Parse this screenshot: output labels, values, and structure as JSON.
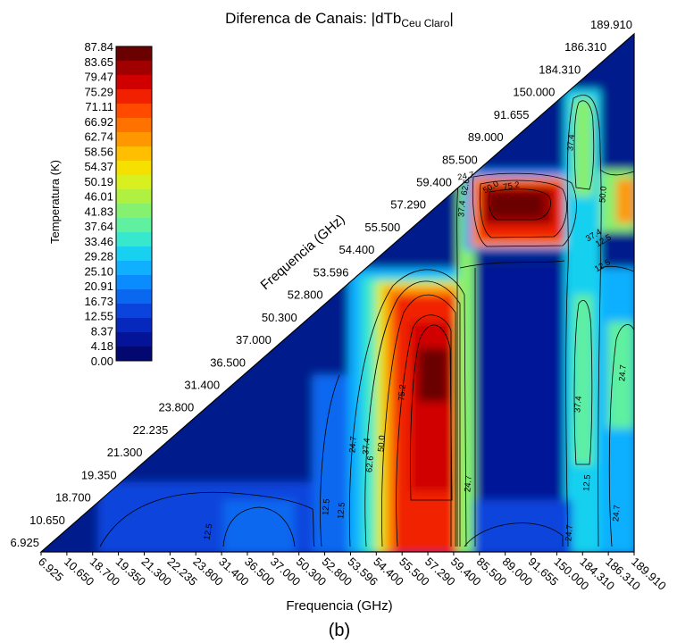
{
  "chart_data": {
    "type": "heatmap",
    "title_main": "Diferenca de Canais: |dTb",
    "title_sub": "Ceu Claro",
    "title_end": "|",
    "xlabel": "Frequencia (GHz)",
    "diag_label": "Frequencia (GHz)",
    "caption": "(b)",
    "colorbar_label": "Temperatura (K)",
    "colorbar_ticks": [
      "87.84",
      "83.65",
      "79.47",
      "75.29",
      "71.11",
      "66.92",
      "62.74",
      "58.56",
      "54.37",
      "50.19",
      "46.01",
      "41.83",
      "37.64",
      "33.46",
      "29.28",
      "25.10",
      "20.91",
      "16.73",
      "12.55",
      "8.37",
      "4.18",
      "0.00"
    ],
    "colorbar_colors": [
      "#6a0000",
      "#a00000",
      "#d00000",
      "#f02000",
      "#ff4a00",
      "#ff7200",
      "#ff9800",
      "#ffbe00",
      "#f6e000",
      "#d8ef20",
      "#b0f040",
      "#86f070",
      "#5ff0a0",
      "#38e8cc",
      "#18d0f0",
      "#10b0ff",
      "#0a8cff",
      "#0a68f0",
      "#0a44dc",
      "#0628bc",
      "#041498",
      "#020870"
    ],
    "frequencies": [
      "6.925",
      "10.650",
      "18.700",
      "19.350",
      "21.300",
      "22.235",
      "23.800",
      "31.400",
      "36.500",
      "37.000",
      "50.300",
      "52.800",
      "53.596",
      "54.400",
      "55.500",
      "57.290",
      "59.400",
      "85.500",
      "89.000",
      "91.655",
      "150.000",
      "184.310",
      "186.310",
      "189.910"
    ],
    "contour_labels": [
      "12.5",
      "24.7",
      "37.4",
      "50.0",
      "62.6",
      "75.2",
      "37.4",
      "50.0",
      "62.6",
      "75.2",
      "24.7",
      "12.5",
      "37.4",
      "24.7",
      "37.4",
      "24.7",
      "12.5",
      "24.7",
      "50.0",
      "12.5",
      "24.7",
      "37.4",
      "12.5",
      "12.5"
    ]
  }
}
